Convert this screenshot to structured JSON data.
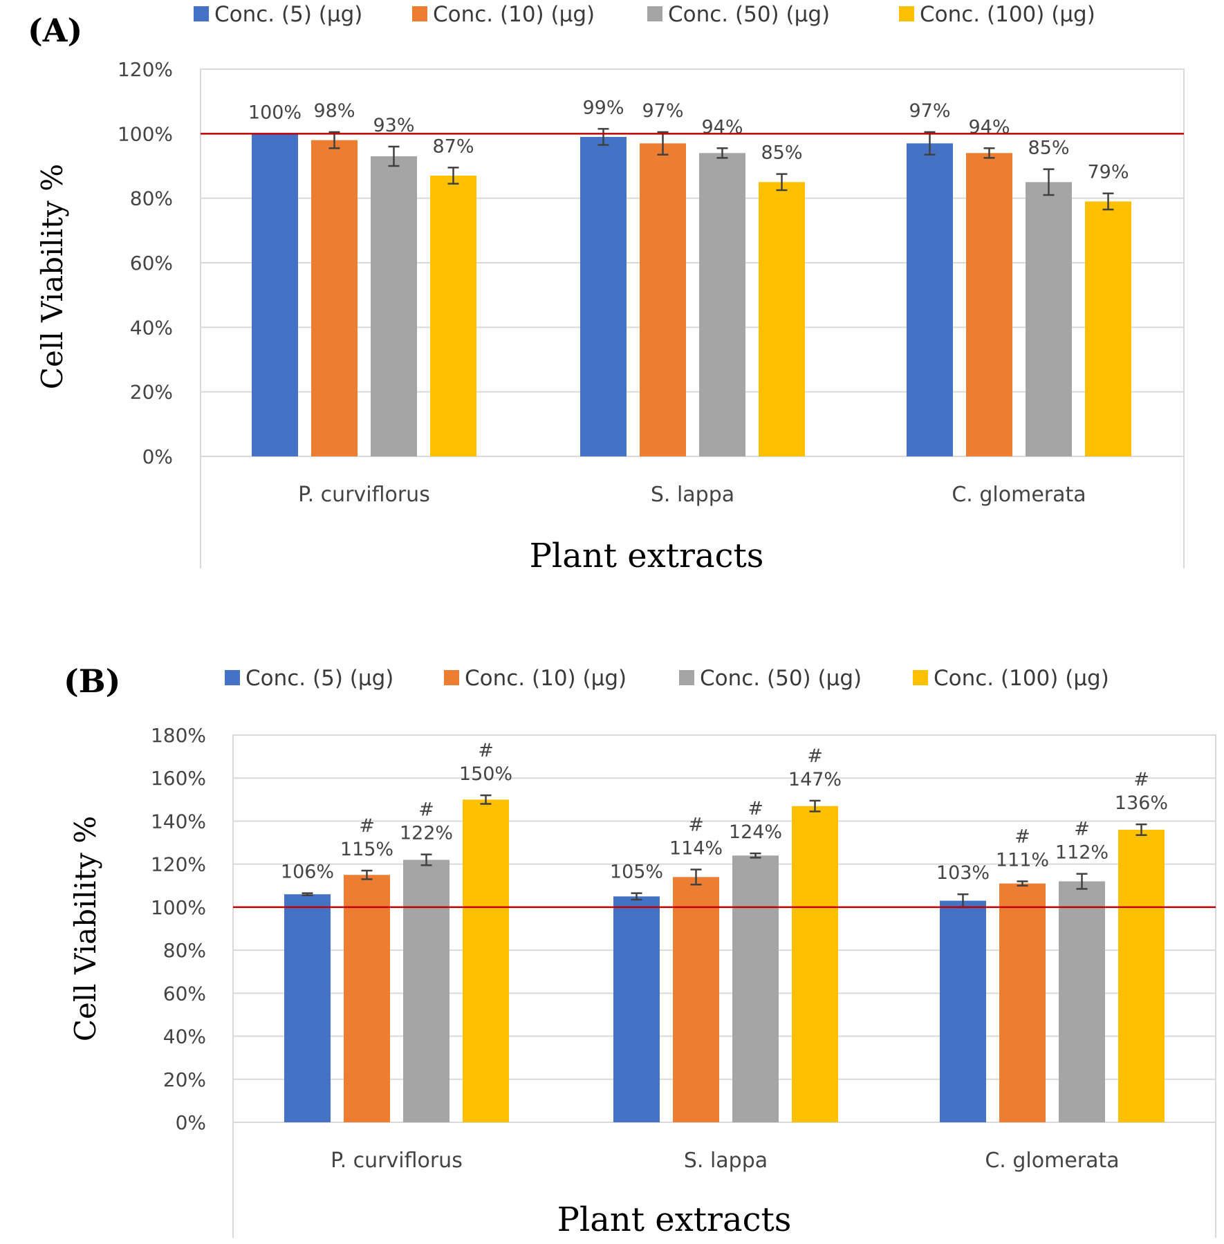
{
  "colors": {
    "series": [
      "#4472c4",
      "#ed7d31",
      "#a5a5a5",
      "#ffc000"
    ],
    "reference_line": "#c00000",
    "grid": "#d9d9d9",
    "error_bar": "#404040"
  },
  "chart_data": [
    {
      "panel": "(A)",
      "type": "bar",
      "categories": [
        "P. curviflorus",
        "S. lappa",
        "C. glomerata"
      ],
      "series": [
        {
          "name": "Conc. (5) (µg)",
          "values": [
            100,
            99,
            97
          ],
          "errors": [
            0,
            2.5,
            3.5
          ],
          "labels": [
            "100%",
            "99%",
            "97%"
          ],
          "marks": [
            "",
            "",
            ""
          ]
        },
        {
          "name": "Conc. (10) (µg)",
          "values": [
            98,
            97,
            94
          ],
          "errors": [
            2.5,
            3.5,
            1.5
          ],
          "labels": [
            "98%",
            "97%",
            "94%"
          ],
          "marks": [
            "",
            "",
            ""
          ]
        },
        {
          "name": "Conc. (50) (µg)",
          "values": [
            93,
            94,
            85
          ],
          "errors": [
            3,
            1.5,
            4
          ],
          "labels": [
            "93%",
            "94%",
            "85%"
          ],
          "marks": [
            "",
            "",
            ""
          ]
        },
        {
          "name": "Conc. (100) (µg)",
          "values": [
            87,
            85,
            79
          ],
          "errors": [
            2.5,
            2.5,
            2.5
          ],
          "labels": [
            "87%",
            "85%",
            "79%"
          ],
          "marks": [
            "",
            "",
            ""
          ]
        }
      ],
      "xlabel": "Plant extracts",
      "ylabel": "Cell Viability %",
      "ylim": [
        0,
        120
      ],
      "yticks": [
        "0%",
        "20%",
        "40%",
        "60%",
        "80%",
        "100%",
        "120%"
      ],
      "reference_line": 100,
      "grid": true,
      "legend": "top"
    },
    {
      "panel": "(B)",
      "type": "bar",
      "categories": [
        "P. curviflorus",
        "S. lappa",
        "C. glomerata"
      ],
      "series": [
        {
          "name": "Conc. (5) (µg)",
          "values": [
            106,
            105,
            103
          ],
          "errors": [
            0.5,
            1.5,
            3
          ],
          "labels": [
            "106%",
            "105%",
            "103%"
          ],
          "marks": [
            "",
            "",
            ""
          ]
        },
        {
          "name": "Conc. (10) (µg)",
          "values": [
            115,
            114,
            111
          ],
          "errors": [
            2,
            3.5,
            1
          ],
          "labels": [
            "115%",
            "114%",
            "111%"
          ],
          "marks": [
            "#",
            "#",
            "#"
          ]
        },
        {
          "name": "Conc. (50) (µg)",
          "values": [
            122,
            124,
            112
          ],
          "errors": [
            2.5,
            1,
            3.5
          ],
          "labels": [
            "122%",
            "124%",
            "112%"
          ],
          "marks": [
            "#",
            "#",
            "#"
          ]
        },
        {
          "name": "Conc. (100) (µg)",
          "values": [
            150,
            147,
            136
          ],
          "errors": [
            2,
            2.5,
            2.5
          ],
          "labels": [
            "150%",
            "147%",
            "136%"
          ],
          "marks": [
            "#",
            "#",
            "#"
          ]
        }
      ],
      "xlabel": "Plant extracts",
      "ylabel": "Cell Viability %",
      "ylim": [
        0,
        180
      ],
      "yticks": [
        "0%",
        "20%",
        "40%",
        "60%",
        "80%",
        "100%",
        "120%",
        "140%",
        "160%",
        "180%"
      ],
      "reference_line": 100,
      "grid": true,
      "legend": "top"
    }
  ]
}
